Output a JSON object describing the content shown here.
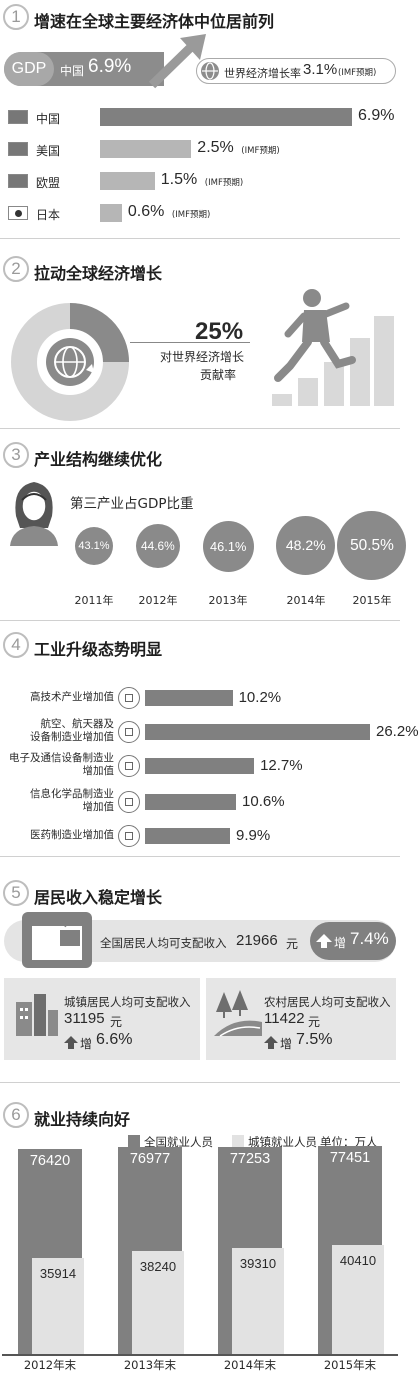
{
  "colors": {
    "dark_gray": "#808080",
    "light_gray": "#b6b6b6",
    "pale_gray": "#e2e2e2",
    "text": "#2a2a2a"
  },
  "section1": {
    "number": "1",
    "title": "增速在全球主要经济体中位居前列",
    "gdp_badge": "GDP",
    "china_label": "中国",
    "china_value": "6.9%",
    "world_label": "世界经济增长率",
    "world_value": "3.1%",
    "world_note": "(IMF预期)",
    "chart_data": {
      "type": "bar",
      "categories": [
        "中国",
        "美国",
        "欧盟",
        "日本"
      ],
      "values": [
        6.9,
        2.5,
        1.5,
        0.6
      ],
      "value_labels": [
        "6.9%",
        "2.5%",
        "1.5%",
        "0.6%"
      ],
      "notes": [
        "",
        "(IMF预期)",
        "(IMF预期)",
        "(IMF预期)"
      ],
      "flags": [
        "china-flag-icon",
        "usa-flag-icon",
        "eu-flag-icon",
        "japan-flag-icon"
      ]
    }
  },
  "section2": {
    "number": "2",
    "title": "拉动全球经济增长",
    "value": "25%",
    "desc_line1": "对世界经济增长",
    "desc_line2": "贡献率",
    "chart_data": {
      "type": "pie",
      "share": 25
    }
  },
  "section3": {
    "number": "3",
    "title": "产业结构继续优化",
    "subtitle": "第三产业占GDP比重",
    "chart_data": {
      "type": "bubble",
      "categories": [
        "2011年",
        "2012年",
        "2013年",
        "2014年",
        "2015年"
      ],
      "values": [
        43.1,
        44.6,
        46.1,
        48.2,
        50.5
      ],
      "value_labels": [
        "43.1%",
        "44.6%",
        "46.1%",
        "48.2%",
        "50.5%"
      ]
    }
  },
  "section4": {
    "number": "4",
    "title": "工业升级态势明显",
    "chart_data": {
      "type": "bar",
      "categories": [
        "高技术产业增加值",
        "航空、航天器及设备制造业增加值",
        "电子及通信设备制造业增加值",
        "信息化学品制造业增加值",
        "医药制造业增加值"
      ],
      "label_lines": [
        [
          "高技术产业增加值"
        ],
        [
          "航空、航天器及",
          "设备制造业增加值"
        ],
        [
          "电子及通信设备制造业",
          "增加值"
        ],
        [
          "信息化学品制造业",
          "增加值"
        ],
        [
          "医药制造业增加值"
        ]
      ],
      "values": [
        10.2,
        26.2,
        12.7,
        10.6,
        9.9
      ],
      "value_labels": [
        "10.2%",
        "26.2%",
        "12.7%",
        "10.6%",
        "9.9%"
      ],
      "icons": [
        "chip-icon",
        "airplane-icon",
        "tablet-icon",
        "flask-icon",
        "microscope-icon"
      ]
    }
  },
  "section5": {
    "number": "5",
    "title": "居民收入稳定增长",
    "national_label": "全国居民人均可支配收入",
    "national_value": "21966",
    "national_unit": "元",
    "national_growth_prefix": "增",
    "national_growth": "7.4%",
    "urban_label": "城镇居民人均可支配收入",
    "urban_value": "31195",
    "urban_unit": "元",
    "urban_growth_prefix": "增",
    "urban_growth": "6.6%",
    "rural_label": "农村居民人均可支配收入",
    "rural_value": "11422",
    "rural_unit": "元",
    "rural_growth_prefix": "增",
    "rural_growth": "7.5%"
  },
  "section6": {
    "number": "6",
    "title": "就业持续向好",
    "legend_total": "全国就业人员",
    "legend_urban": "城镇就业人员",
    "unit": "单位：万人",
    "chart_data": {
      "type": "bar",
      "categories": [
        "2012年末",
        "2013年末",
        "2014年末",
        "2015年末"
      ],
      "series": [
        {
          "name": "全国就业人员",
          "values": [
            76420,
            76977,
            77253,
            77451
          ]
        },
        {
          "name": "城镇就业人员",
          "values": [
            35914,
            38240,
            39310,
            40410
          ]
        }
      ]
    }
  }
}
